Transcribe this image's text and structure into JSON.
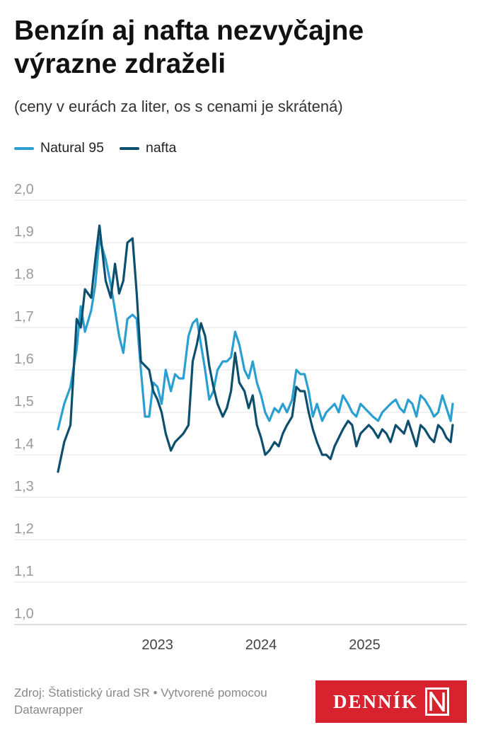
{
  "header": {
    "title": "Benzín aj nafta nezvyčajne výrazne zdraželi",
    "subtitle": "(ceny v eurách za liter, os s cenami je skrátená)"
  },
  "footer": {
    "source": "Zdroj: Štatistický úrad SR • Vytvorené pomocou Datawrapper"
  },
  "logo": {
    "text": "DENNÍK",
    "mark": "N"
  },
  "chart_data": {
    "type": "line",
    "ylim": [
      1.0,
      2.0
    ],
    "y_ticks": [
      "2,0",
      "1,9",
      "1,8",
      "1,7",
      "1,6",
      "1,5",
      "1,4",
      "1,3",
      "1,2",
      "1,1",
      "1,0"
    ],
    "x_ticks": [
      "2023",
      "2024",
      "2025"
    ],
    "xlim": [
      2022.0,
      2025.95
    ],
    "grid": true,
    "legend_position": "top-left",
    "x": [
      2022.04,
      2022.1,
      2022.16,
      2022.22,
      2022.26,
      2022.3,
      2022.36,
      2022.4,
      2022.44,
      2022.5,
      2022.55,
      2022.59,
      2022.63,
      2022.67,
      2022.71,
      2022.76,
      2022.8,
      2022.84,
      2022.88,
      2022.92,
      2022.96,
      2023.0,
      2023.04,
      2023.08,
      2023.13,
      2023.17,
      2023.21,
      2023.25,
      2023.3,
      2023.34,
      2023.38,
      2023.42,
      2023.46,
      2023.5,
      2023.54,
      2023.58,
      2023.63,
      2023.67,
      2023.71,
      2023.75,
      2023.79,
      2023.84,
      2023.88,
      2023.92,
      2023.96,
      2024.0,
      2024.04,
      2024.08,
      2024.13,
      2024.17,
      2024.21,
      2024.25,
      2024.3,
      2024.34,
      2024.38,
      2024.42,
      2024.46,
      2024.5,
      2024.54,
      2024.59,
      2024.63,
      2024.67,
      2024.71,
      2024.75,
      2024.79,
      2024.84,
      2024.88,
      2024.92,
      2024.96,
      2025.0,
      2025.04,
      2025.08,
      2025.13,
      2025.17,
      2025.21,
      2025.25,
      2025.3,
      2025.34,
      2025.38,
      2025.42,
      2025.46,
      2025.5,
      2025.54,
      2025.58,
      2025.63,
      2025.67,
      2025.71,
      2025.75,
      2025.79,
      2025.83,
      2025.85
    ],
    "series": [
      {
        "name": "Natural 95",
        "color": "#2a9fd0",
        "values": [
          1.46,
          1.52,
          1.56,
          1.65,
          1.75,
          1.69,
          1.74,
          1.8,
          1.91,
          1.86,
          1.8,
          1.74,
          1.68,
          1.64,
          1.72,
          1.73,
          1.72,
          1.6,
          1.49,
          1.49,
          1.57,
          1.56,
          1.52,
          1.6,
          1.55,
          1.59,
          1.58,
          1.58,
          1.68,
          1.71,
          1.72,
          1.66,
          1.6,
          1.53,
          1.55,
          1.6,
          1.62,
          1.62,
          1.63,
          1.69,
          1.66,
          1.6,
          1.58,
          1.62,
          1.57,
          1.54,
          1.5,
          1.48,
          1.51,
          1.5,
          1.52,
          1.5,
          1.53,
          1.6,
          1.59,
          1.59,
          1.55,
          1.49,
          1.52,
          1.48,
          1.5,
          1.51,
          1.52,
          1.5,
          1.54,
          1.52,
          1.5,
          1.49,
          1.52,
          1.51,
          1.5,
          1.49,
          1.48,
          1.5,
          1.51,
          1.52,
          1.53,
          1.51,
          1.5,
          1.53,
          1.52,
          1.49,
          1.54,
          1.53,
          1.51,
          1.49,
          1.5,
          1.54,
          1.51,
          1.48,
          1.52
        ]
      },
      {
        "name": "nafta",
        "color": "#0d4f6e",
        "values": [
          1.36,
          1.43,
          1.47,
          1.72,
          1.7,
          1.79,
          1.77,
          1.86,
          1.94,
          1.81,
          1.77,
          1.85,
          1.78,
          1.81,
          1.9,
          1.91,
          1.78,
          1.62,
          1.61,
          1.6,
          1.55,
          1.53,
          1.5,
          1.45,
          1.41,
          1.43,
          1.44,
          1.45,
          1.47,
          1.62,
          1.66,
          1.71,
          1.68,
          1.61,
          1.56,
          1.52,
          1.49,
          1.51,
          1.55,
          1.64,
          1.57,
          1.55,
          1.51,
          1.54,
          1.47,
          1.44,
          1.4,
          1.41,
          1.43,
          1.42,
          1.45,
          1.47,
          1.49,
          1.56,
          1.55,
          1.55,
          1.5,
          1.46,
          1.43,
          1.4,
          1.4,
          1.39,
          1.42,
          1.44,
          1.46,
          1.48,
          1.47,
          1.42,
          1.45,
          1.46,
          1.47,
          1.46,
          1.44,
          1.46,
          1.45,
          1.43,
          1.47,
          1.46,
          1.45,
          1.48,
          1.45,
          1.42,
          1.47,
          1.46,
          1.44,
          1.43,
          1.47,
          1.46,
          1.44,
          1.43,
          1.47
        ]
      }
    ]
  }
}
